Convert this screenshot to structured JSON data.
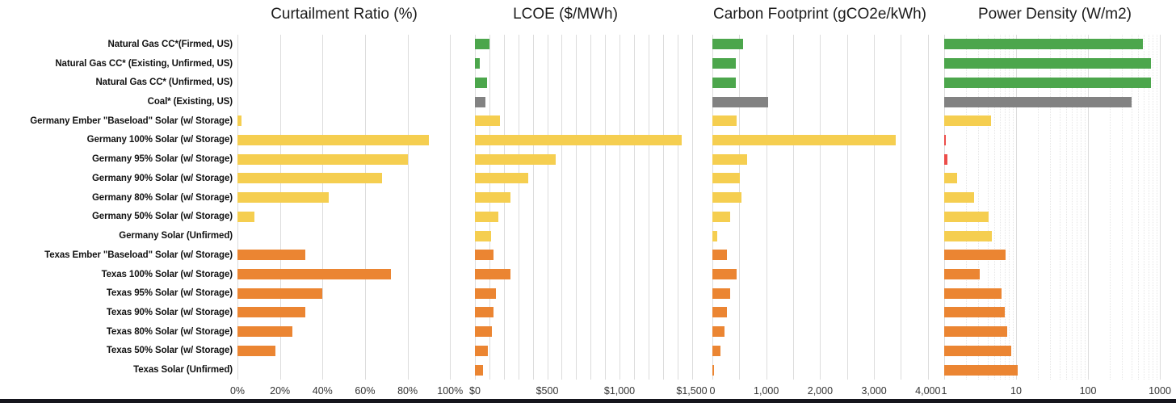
{
  "chart_data": {
    "type": "bar",
    "orientation": "horizontal",
    "categories": [
      "Natural Gas CC*(Firmed, US)",
      "Natural Gas CC* (Existing, Unfirmed, US)",
      "Natural Gas CC* (Unfirmed, US)",
      "Coal* (Existing, US)",
      "Germany Ember \"Baseload\" Solar (w/ Storage)",
      "Germany 100% Solar (w/ Storage)",
      "Germany 95% Solar (w/ Storage)",
      "Germany 90% Solar (w/ Storage)",
      "Germany 80% Solar (w/ Storage)",
      "Germany 50% Solar (w/ Storage)",
      "Germany Solar (Unfirmed)",
      "Texas Ember \"Baseload\" Solar (w/ Storage)",
      "Texas 100% Solar (w/ Storage)",
      "Texas 95% Solar (w/ Storage)",
      "Texas 90% Solar (w/ Storage)",
      "Texas 80% Solar (w/ Storage)",
      "Texas 50% Solar (w/ Storage)",
      "Texas Solar (Unfirmed)"
    ],
    "row_groups": [
      "natural_gas",
      "natural_gas",
      "natural_gas",
      "coal",
      "germany",
      "germany",
      "germany",
      "germany",
      "germany",
      "germany",
      "germany",
      "texas",
      "texas",
      "texas",
      "texas",
      "texas",
      "texas",
      "texas"
    ],
    "colors": {
      "natural_gas": "#4ca64c",
      "coal": "#828282",
      "germany": "#f5ce50",
      "texas": "#eb8532",
      "highlight_red": "#ec4d49",
      "gridline": "#dcdcdc"
    },
    "panels": [
      {
        "id": "curtailment",
        "title": "Curtailment Ratio (%)",
        "scale": "linear",
        "xlim": [
          0,
          101
        ],
        "grid_step": 20,
        "tick_labels": [
          "0%",
          "20%",
          "40%",
          "60%",
          "80%",
          "100%"
        ],
        "tick_values": [
          0,
          20,
          40,
          60,
          80,
          100
        ],
        "values": [
          0,
          0,
          0,
          0,
          2,
          90,
          80,
          68,
          43,
          8,
          0,
          32,
          72,
          40,
          32,
          26,
          18,
          0
        ]
      },
      {
        "id": "lcoe",
        "title": "LCOE ($/MWh)",
        "scale": "linear",
        "xlim": [
          0,
          1600
        ],
        "grid_step": 100,
        "tick_labels": [
          "$0",
          "$500",
          "$1,000",
          "$1,500"
        ],
        "tick_values": [
          0,
          500,
          1000,
          1500
        ],
        "values": [
          102,
          32,
          85,
          73,
          172,
          1430,
          560,
          371,
          248,
          160,
          112,
          128,
          245,
          148,
          126,
          116,
          92,
          58
        ]
      },
      {
        "id": "carbon",
        "title": "Carbon Footprint (gCO2e/kWh)",
        "scale": "linear",
        "xlim": [
          0,
          4100
        ],
        "grid_step": 500,
        "tick_labels": [
          "0",
          "1,000",
          "2,000",
          "3,000",
          "4,000"
        ],
        "tick_values": [
          0,
          1000,
          2000,
          3000,
          4000
        ],
        "values": [
          570,
          435,
          430,
          1040,
          455,
          3400,
          650,
          515,
          535,
          325,
          95,
          265,
          450,
          335,
          265,
          230,
          150,
          30
        ]
      },
      {
        "id": "power_density",
        "title": "Power Density (W/m2)",
        "scale": "log",
        "xlim": [
          1,
          1000
        ],
        "tick_labels": [
          "1",
          "10",
          "100",
          "1000"
        ],
        "tick_values": [
          1,
          10,
          100,
          1000
        ],
        "values": [
          580,
          750,
          760,
          400,
          4.5,
          1.05,
          1.1,
          1.5,
          2.6,
          4.2,
          4.6,
          7.1,
          3.1,
          6.3,
          6.9,
          7.5,
          8.5,
          10.5
        ],
        "highlight_red_indices": [
          5,
          6
        ]
      }
    ]
  }
}
